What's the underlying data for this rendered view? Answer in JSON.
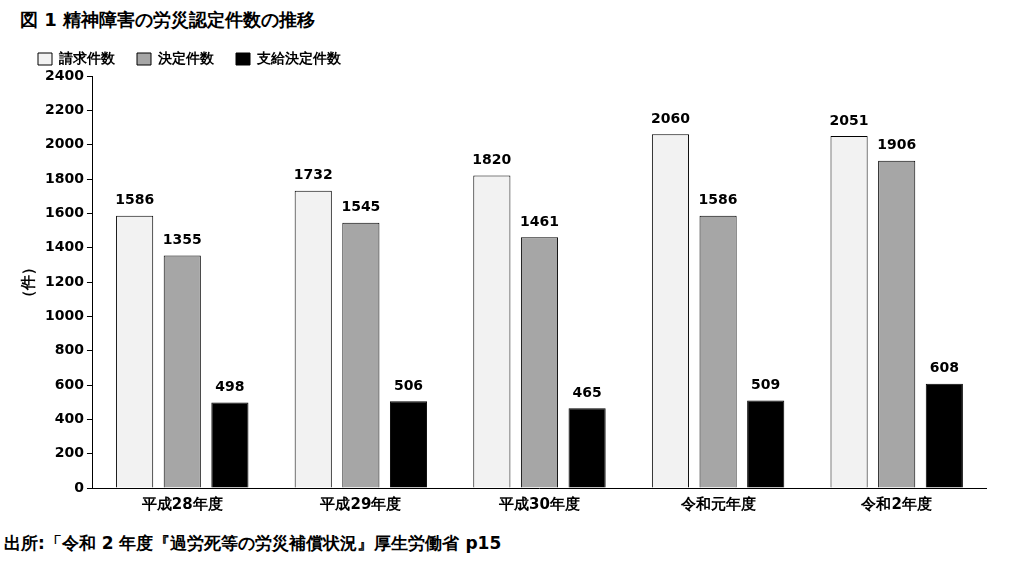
{
  "chart_data": {
    "type": "bar",
    "title": "図 1 精神障害の労災認定件数の推移",
    "y_label": "（件）",
    "categories": [
      "平成28年度",
      "平成29年度",
      "平成30年度",
      "令和元年度",
      "令和2年度"
    ],
    "series": [
      {
        "name": "請求件数",
        "color": "#f2f2f2",
        "values": [
          1586,
          1732,
          1820,
          2060,
          2051
        ]
      },
      {
        "name": "決定件数",
        "color": "#a6a6a6",
        "values": [
          1355,
          1545,
          1461,
          1586,
          1906
        ]
      },
      {
        "name": "支給決定件数",
        "color": "#000000",
        "values": [
          498,
          506,
          465,
          509,
          608
        ]
      }
    ],
    "ylim": [
      0,
      2400
    ],
    "yticks": [
      0,
      200,
      400,
      600,
      800,
      1000,
      1200,
      1400,
      1600,
      1800,
      2000,
      2200,
      2400
    ],
    "grid": false,
    "legend": "upper left",
    "data_labels": true,
    "annotations": [
      "出所:「令和 2 年度『過労死等の労災補償状況』厚生労働省 p15"
    ]
  }
}
